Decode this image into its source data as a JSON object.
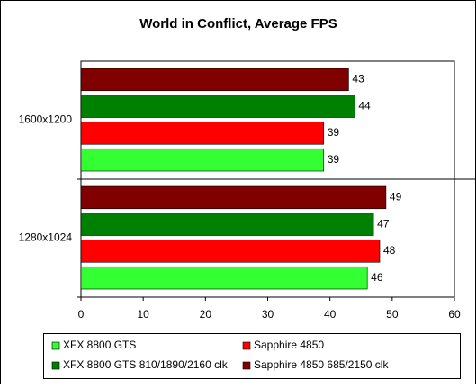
{
  "chart_data": {
    "type": "barh",
    "title": "World in Conflict, Average FPS",
    "categories": [
      "1600x1200",
      "1280x1024"
    ],
    "series": [
      {
        "name": "XFX 8800 GTS",
        "color": "#33ff33",
        "values": [
          39,
          46
        ]
      },
      {
        "name": "Sapphire 4850",
        "color": "#ff0000",
        "values": [
          39,
          48
        ]
      },
      {
        "name": "XFX 8800 GTS 810/1890/2160 clk",
        "color": "#008000",
        "values": [
          44,
          47
        ]
      },
      {
        "name": "Sapphire 4850 685/2150 clk",
        "color": "#800000",
        "values": [
          43,
          49
        ]
      }
    ],
    "xlim": [
      0,
      60
    ],
    "xticks": [
      0,
      10,
      20,
      30,
      40,
      50,
      60
    ],
    "legend": "bottom"
  }
}
